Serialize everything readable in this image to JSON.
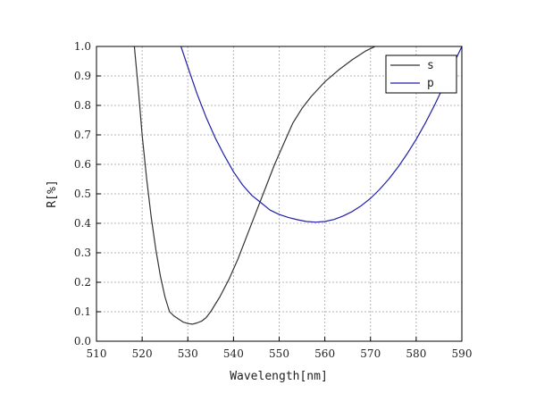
{
  "chart_data": {
    "type": "line",
    "title": "",
    "xlabel": "Wavelength[nm]",
    "ylabel": "R[%]",
    "xlim": [
      510,
      590
    ],
    "ylim": [
      0.0,
      1.0
    ],
    "xticks": [
      "510",
      "520",
      "530",
      "540",
      "550",
      "560",
      "570",
      "580",
      "590"
    ],
    "yticks": [
      "0.0",
      "0.1",
      "0.2",
      "0.3",
      "0.4",
      "0.5",
      "0.6",
      "0.7",
      "0.8",
      "0.9",
      "1.0"
    ],
    "grid": true,
    "legend_position": "top-right",
    "series": [
      {
        "name": "s",
        "color": "#333333",
        "points": [
          [
            518.3,
            1.0
          ],
          [
            519.2,
            0.85
          ],
          [
            520.0,
            0.7
          ],
          [
            521.0,
            0.55
          ],
          [
            522.0,
            0.42
          ],
          [
            523.0,
            0.31
          ],
          [
            524.0,
            0.22
          ],
          [
            525.0,
            0.15
          ],
          [
            526.0,
            0.1
          ],
          [
            527.0,
            0.085
          ],
          [
            528.0,
            0.075
          ],
          [
            529.0,
            0.065
          ],
          [
            530.0,
            0.06
          ],
          [
            531.0,
            0.058
          ],
          [
            532.0,
            0.062
          ],
          [
            533.0,
            0.068
          ],
          [
            534.0,
            0.08
          ],
          [
            535.0,
            0.1
          ],
          [
            537.0,
            0.15
          ],
          [
            539.0,
            0.21
          ],
          [
            541.0,
            0.28
          ],
          [
            543.0,
            0.36
          ],
          [
            545.0,
            0.44
          ],
          [
            547.0,
            0.52
          ],
          [
            549.0,
            0.6
          ],
          [
            551.0,
            0.67
          ],
          [
            553.0,
            0.74
          ],
          [
            555.0,
            0.79
          ],
          [
            557.0,
            0.83
          ],
          [
            560.0,
            0.88
          ],
          [
            563.0,
            0.92
          ],
          [
            566.0,
            0.955
          ],
          [
            569.0,
            0.985
          ],
          [
            571.0,
            1.0
          ]
        ]
      },
      {
        "name": "p",
        "color": "#1f1fa8",
        "points": [
          [
            528.5,
            1.0
          ],
          [
            530.0,
            0.93
          ],
          [
            532.0,
            0.84
          ],
          [
            534.0,
            0.76
          ],
          [
            536.0,
            0.69
          ],
          [
            538.0,
            0.63
          ],
          [
            540.0,
            0.575
          ],
          [
            542.0,
            0.53
          ],
          [
            544.0,
            0.495
          ],
          [
            546.0,
            0.47
          ],
          [
            548.0,
            0.445
          ],
          [
            550.0,
            0.43
          ],
          [
            552.0,
            0.42
          ],
          [
            554.0,
            0.412
          ],
          [
            556.0,
            0.406
          ],
          [
            558.0,
            0.404
          ],
          [
            560.0,
            0.406
          ],
          [
            562.0,
            0.413
          ],
          [
            564.0,
            0.425
          ],
          [
            566.0,
            0.44
          ],
          [
            568.0,
            0.46
          ],
          [
            570.0,
            0.485
          ],
          [
            572.0,
            0.515
          ],
          [
            574.0,
            0.55
          ],
          [
            576.0,
            0.59
          ],
          [
            578.0,
            0.635
          ],
          [
            580.0,
            0.685
          ],
          [
            582.0,
            0.74
          ],
          [
            584.0,
            0.8
          ],
          [
            586.0,
            0.865
          ],
          [
            588.0,
            0.935
          ],
          [
            590.0,
            1.0
          ]
        ]
      }
    ]
  }
}
